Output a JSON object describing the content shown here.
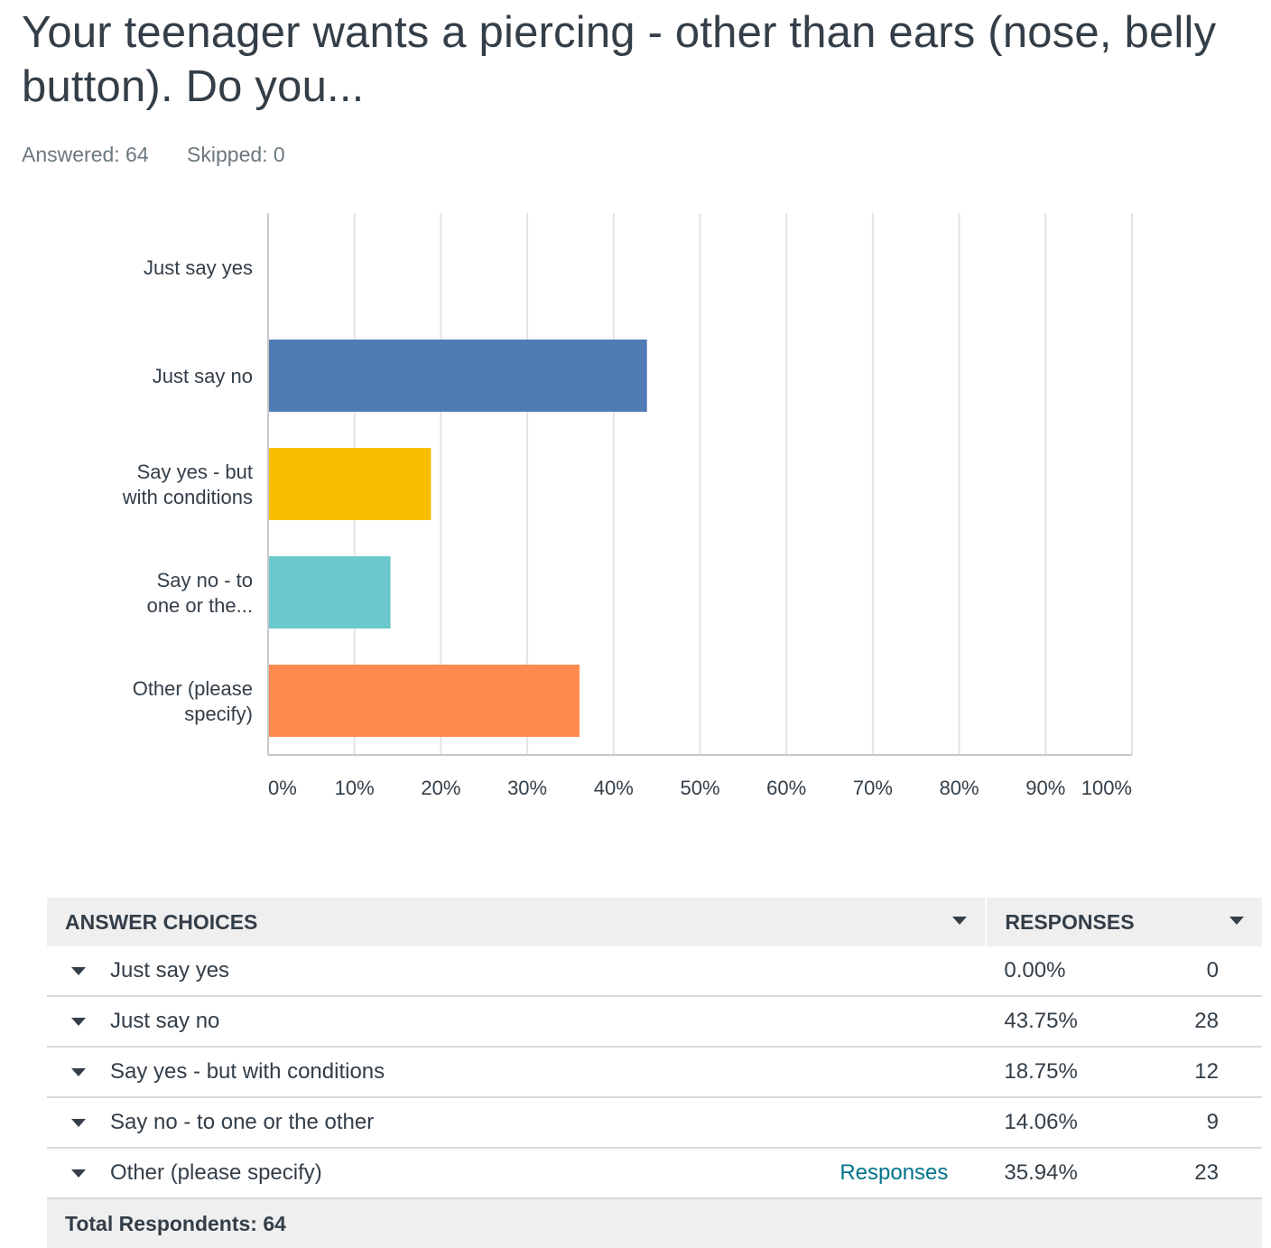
{
  "question": {
    "title": "Your teenager wants a piercing - other than ears (nose, belly button).  Do you...",
    "answered": "Answered: 64",
    "skipped": "Skipped: 0"
  },
  "chart_data": {
    "type": "bar",
    "orientation": "horizontal",
    "categories": [
      [
        "Just say yes"
      ],
      [
        "Just say no"
      ],
      [
        "Say yes - but",
        "with conditions"
      ],
      [
        "Say no - to",
        "one or the..."
      ],
      [
        "Other (please",
        "specify)"
      ]
    ],
    "values": [
      0.0,
      43.75,
      18.75,
      14.06,
      35.94
    ],
    "colors": [
      "#6f8ec8",
      "#507cb6",
      "#f9be00",
      "#6bc8cd",
      "#ff8b4f"
    ],
    "xlim": [
      0,
      100
    ],
    "xticks": [
      "0%",
      "10%",
      "20%",
      "30%",
      "40%",
      "50%",
      "60%",
      "70%",
      "80%",
      "90%",
      "100%"
    ],
    "grid": true
  },
  "table": {
    "headers": {
      "choices": "ANSWER CHOICES",
      "responses": "RESPONSES"
    },
    "rows": [
      {
        "label": "Just say yes",
        "link": "",
        "pct": "0.00%",
        "count": "0"
      },
      {
        "label": "Just say no",
        "link": "",
        "pct": "43.75%",
        "count": "28"
      },
      {
        "label": "Say yes - but with conditions",
        "link": "",
        "pct": "18.75%",
        "count": "12"
      },
      {
        "label": "Say no - to one or the other",
        "link": "",
        "pct": "14.06%",
        "count": "9"
      },
      {
        "label": "Other (please specify)",
        "link": "Responses",
        "pct": "35.94%",
        "count": "23"
      }
    ],
    "total": "Total Respondents: 64"
  }
}
